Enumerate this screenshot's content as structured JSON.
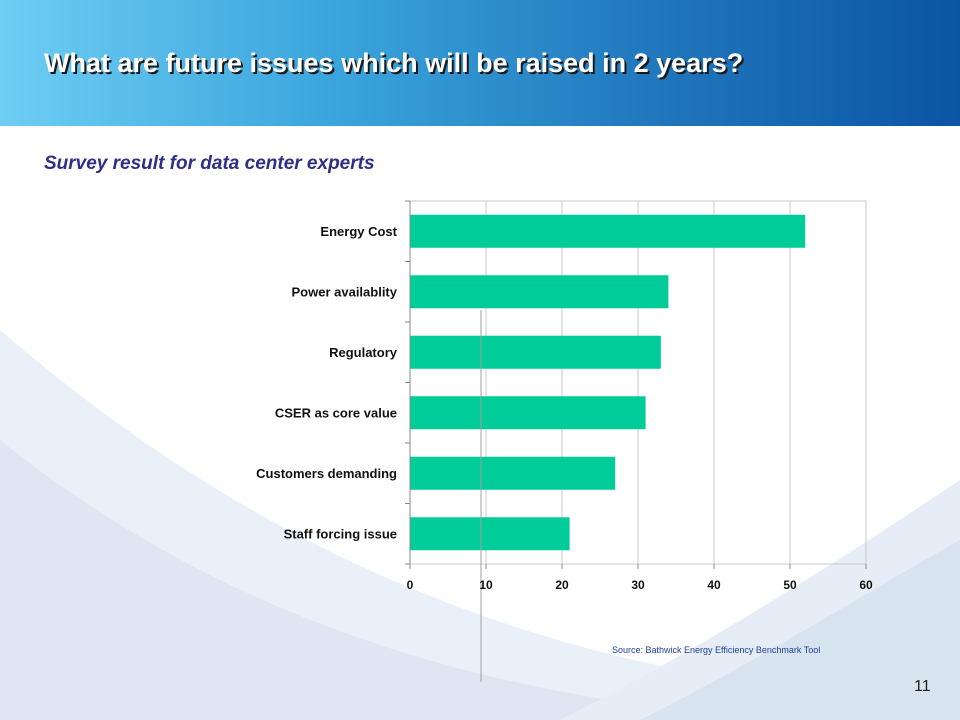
{
  "slide": {
    "title": "What are future issues which will be raised in 2 years?",
    "subtitle": "Survey result for data center experts",
    "source": "Source: Bathwick Energy Efficiency Benchmark Tool",
    "page_number": "11"
  },
  "colors": {
    "bar": "#00cc99",
    "grid": "#c8c8c8",
    "axis": "#888888"
  },
  "chart_data": {
    "type": "bar",
    "orientation": "horizontal",
    "categories": [
      "Energy Cost",
      "Power availablity",
      "Regulatory",
      "CSER as core value",
      "Customers demanding",
      "Staff forcing issue"
    ],
    "values": [
      52,
      34,
      33,
      31,
      27,
      21
    ],
    "xlim": [
      0,
      60
    ],
    "xticks": [
      0,
      10,
      20,
      30,
      40,
      50,
      60
    ],
    "grid": true,
    "legend": "none"
  }
}
